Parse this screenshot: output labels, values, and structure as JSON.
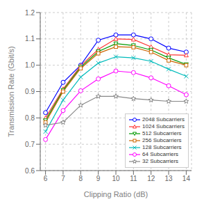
{
  "chart_data": {
    "type": "line",
    "xlabel": "Clipping Ratio (dB)",
    "ylabel": "Transmission Rate (Gbit/s)",
    "x": [
      6,
      7,
      8,
      9,
      10,
      11,
      12,
      13,
      14
    ],
    "series": [
      {
        "name": "2048 Subcarriers",
        "color": "#0000FF",
        "marker": "circle",
        "values": [
          0.82,
          0.935,
          1.0,
          1.095,
          1.115,
          1.115,
          1.1,
          1.065,
          1.05
        ]
      },
      {
        "name": "1024 Subcarriers",
        "color": "#FF3333",
        "marker": "triangle-up",
        "values": [
          0.8,
          0.91,
          0.998,
          1.06,
          1.1,
          1.098,
          1.07,
          1.04,
          1.038
        ]
      },
      {
        "name": "512 Subcarriers",
        "color": "#009900",
        "marker": "triangle-down",
        "values": [
          0.79,
          0.905,
          0.993,
          1.052,
          1.082,
          1.075,
          1.058,
          1.028,
          1.003
        ]
      },
      {
        "name": "256 Subcarriers",
        "color": "#CC6600",
        "marker": "square",
        "values": [
          0.783,
          0.9,
          0.988,
          1.045,
          1.07,
          1.068,
          1.05,
          1.018,
          1.0
        ]
      },
      {
        "name": "128 Subcarriers",
        "color": "#00BBBB",
        "marker": "x",
        "values": [
          0.748,
          0.868,
          0.955,
          1.008,
          1.032,
          1.028,
          1.015,
          0.985,
          0.958
        ]
      },
      {
        "name": "64 Subcarriers",
        "color": "#FF00FF",
        "marker": "circle",
        "values": [
          0.718,
          0.828,
          0.903,
          0.948,
          0.978,
          0.972,
          0.952,
          0.922,
          0.888
        ]
      },
      {
        "name": "32 Subcarriers",
        "color": "#888888",
        "marker": "star",
        "values": [
          0.772,
          0.783,
          0.848,
          0.882,
          0.882,
          0.873,
          0.868,
          0.863,
          0.863
        ]
      }
    ],
    "xlim": [
      5.7,
      14.3
    ],
    "ylim": [
      0.6,
      1.2
    ],
    "xticks": [
      6,
      7,
      8,
      9,
      10,
      11,
      12,
      13,
      14
    ],
    "yticks": [
      0.6,
      0.7,
      0.8,
      0.9,
      {
        "value": 1.0,
        "label": "1.0"
      },
      1.1,
      1.2
    ],
    "grid": true,
    "legend": "lower right"
  }
}
